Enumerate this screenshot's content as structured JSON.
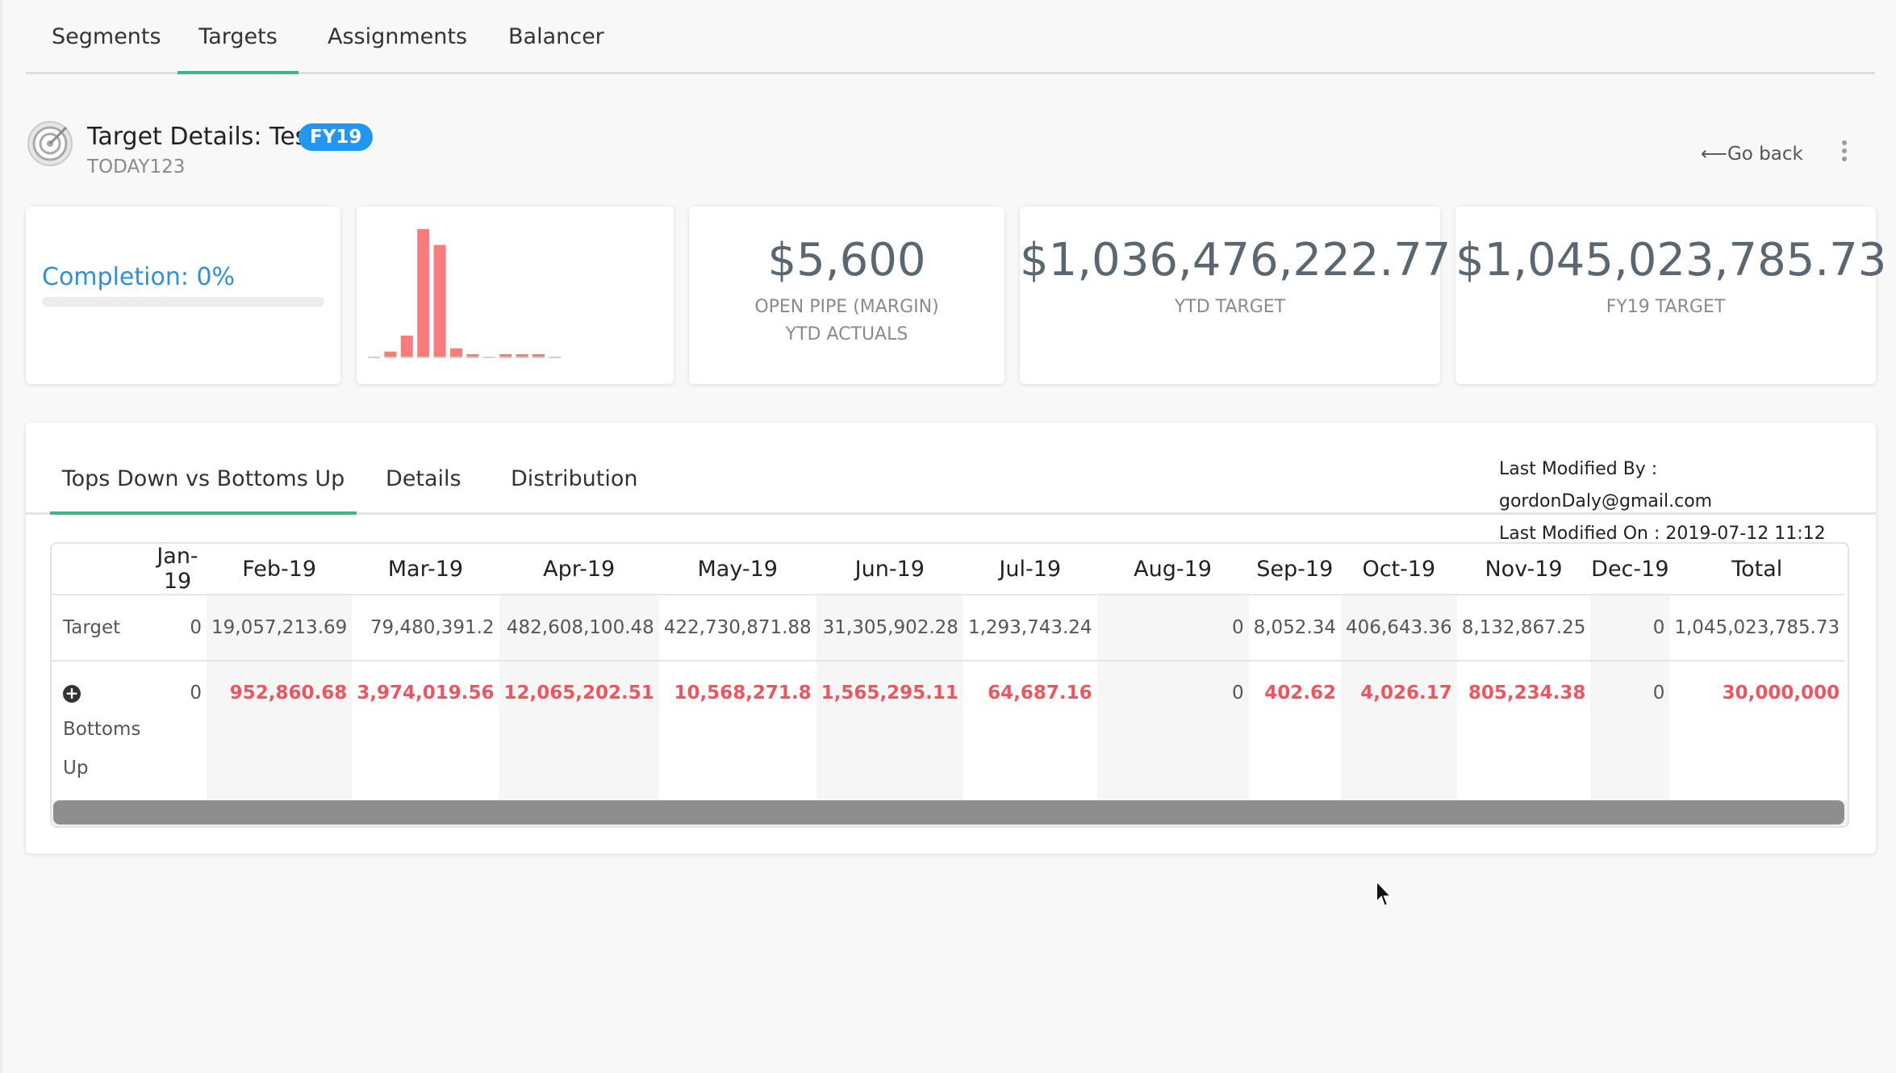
{
  "nav": {
    "tabs": [
      "Segments",
      "Targets",
      "Assignments",
      "Balancer"
    ],
    "active": "Targets"
  },
  "header": {
    "title": "Target Details: Test",
    "badge": "FY19",
    "code": "TODAY123",
    "go_back": "⟵Go back",
    "icon": "target-icon",
    "menu_icon": "kebab-menu-icon"
  },
  "cards": {
    "completion": {
      "label": "Completion: 0%",
      "progress_pct": 0
    },
    "open_pipe": {
      "value": "$5,600",
      "label_line1": "OPEN PIPE (MARGIN)",
      "label_line2": "YTD ACTUALS"
    },
    "ytd_target": {
      "value": "$1,036,476,222.77",
      "label": "YTD TARGET"
    },
    "fy_target": {
      "value": "$1,045,023,785.73",
      "label": "FY19 TARGET"
    }
  },
  "chart_data": {
    "type": "bar",
    "categories": [
      "Jan-19",
      "Feb-19",
      "Mar-19",
      "Apr-19",
      "May-19",
      "Jun-19",
      "Jul-19",
      "Aug-19",
      "Sep-19",
      "Oct-19",
      "Nov-19",
      "Dec-19"
    ],
    "values": [
      0,
      19057213.69,
      79480391.2,
      482608100.48,
      422730871.88,
      31305902.28,
      1293743.24,
      0,
      8052.34,
      406643.36,
      8132867.25,
      0
    ],
    "color": "#f87c7c",
    "baseline_color": "#d0d0d0"
  },
  "panel": {
    "tabs": [
      "Tops Down vs Bottoms Up",
      "Details",
      "Distribution"
    ],
    "active_tab": "Tops Down vs Bottoms Up",
    "modified_by": "Last Modified By : gordonDaly@gmail.com",
    "modified_on": "Last Modified On : 2019-07-12 11:12"
  },
  "table": {
    "columns": [
      "",
      "Jan-19",
      "Feb-19",
      "Mar-19",
      "Apr-19",
      "May-19",
      "Jun-19",
      "Jul-19",
      "Aug-19",
      "Sep-19",
      "Oct-19",
      "Nov-19",
      "Dec-19",
      "Total"
    ],
    "target_label": "Target",
    "target": [
      "0",
      "19,057,213.69",
      "79,480,391.2",
      "482,608,100.48",
      "422,730,871.88",
      "31,305,902.28",
      "1,293,743.24",
      "0",
      "8,052.34",
      "406,643.36",
      "8,132,867.25",
      "0",
      "1,045,023,785.73"
    ],
    "bottoms_label": "Bottoms Up",
    "bottoms_icon": "plus-circle-icon",
    "bottoms": [
      "0",
      "952,860.68",
      "3,974,019.56",
      "12,065,202.51",
      "10,568,271.8",
      "1,565,295.11",
      "64,687.16",
      "0",
      "402.62",
      "4,026.17",
      "805,234.38",
      "0",
      "30,000,000"
    ],
    "negative_color": "#f0555f"
  }
}
